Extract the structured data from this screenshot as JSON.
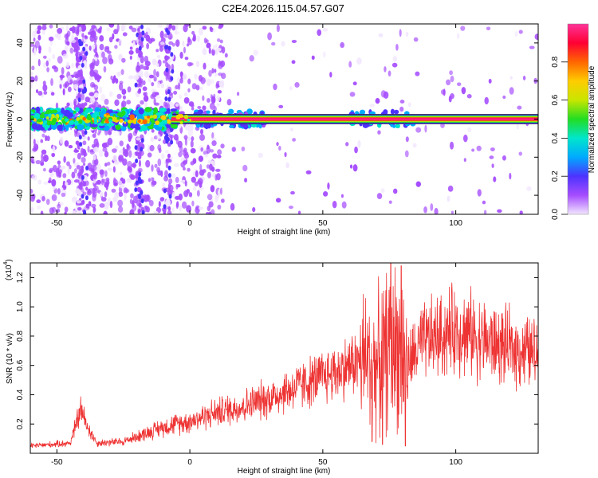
{
  "title": "C2E4.2026.115.04.57.G07",
  "chart_data": [
    {
      "type": "heatmap",
      "xlabel": "Height of straight line (km)",
      "ylabel": "Frequency (Hz)",
      "xlim": [
        -60,
        131
      ],
      "ylim": [
        -50,
        50
      ],
      "xticks": [
        -50,
        0,
        50,
        100
      ],
      "yticks": [
        -40,
        -20,
        0,
        20,
        40
      ],
      "colorbar": {
        "label": "Normalized spectral amplitude",
        "range": [
          0,
          1
        ],
        "ticks": [
          "0.0",
          "0.2",
          "0.4",
          "0.6",
          "0.8"
        ],
        "colormap": [
          "#f2e6ff",
          "#a64dff",
          "#4d33ff",
          "#00aaff",
          "#00e6cc",
          "#22dd22",
          "#c8e600",
          "#ffcc00",
          "#ff6600",
          "#ff0033",
          "#ff3399"
        ]
      },
      "carrier_band": {
        "frequency": 0,
        "halfwidth": 2.5,
        "x_start": -7,
        "x_end": 131
      }
    },
    {
      "type": "line",
      "xlabel": "Height of straight line (km)",
      "ylabel": "SNR (10 * v/v)",
      "scale_label": "(x10",
      "scale_exponent": "4",
      "xlim": [
        -60,
        131
      ],
      "ylim": [
        0,
        1.3
      ],
      "xticks": [
        -50,
        0,
        50,
        100
      ],
      "yticks": [
        0.2,
        0.4,
        0.6,
        0.8,
        1.0,
        1.2
      ],
      "line_color": "#ee3333",
      "trend_points": {
        "x": [
          -60,
          -45,
          -41,
          -39,
          -35,
          -25,
          -10,
          0,
          10,
          20,
          30,
          40,
          50,
          58,
          62,
          66,
          70,
          74,
          78,
          82,
          86,
          90,
          95,
          100,
          105,
          110,
          115,
          120,
          125,
          131
        ],
        "y": [
          0.05,
          0.07,
          0.3,
          0.2,
          0.07,
          0.08,
          0.18,
          0.22,
          0.28,
          0.32,
          0.38,
          0.45,
          0.52,
          0.58,
          0.62,
          0.64,
          0.6,
          0.7,
          0.75,
          0.6,
          0.72,
          0.78,
          0.8,
          0.85,
          0.82,
          0.78,
          0.74,
          0.72,
          0.7,
          0.68
        ]
      },
      "spikes": [
        {
          "x": 75.5,
          "y": 1.3
        },
        {
          "x": 79.5,
          "y": 1.28
        },
        {
          "x": 72.5,
          "y": 0.06
        },
        {
          "x": 81,
          "y": 0.05
        },
        {
          "x": 68.5,
          "y": 0.08
        }
      ]
    }
  ]
}
